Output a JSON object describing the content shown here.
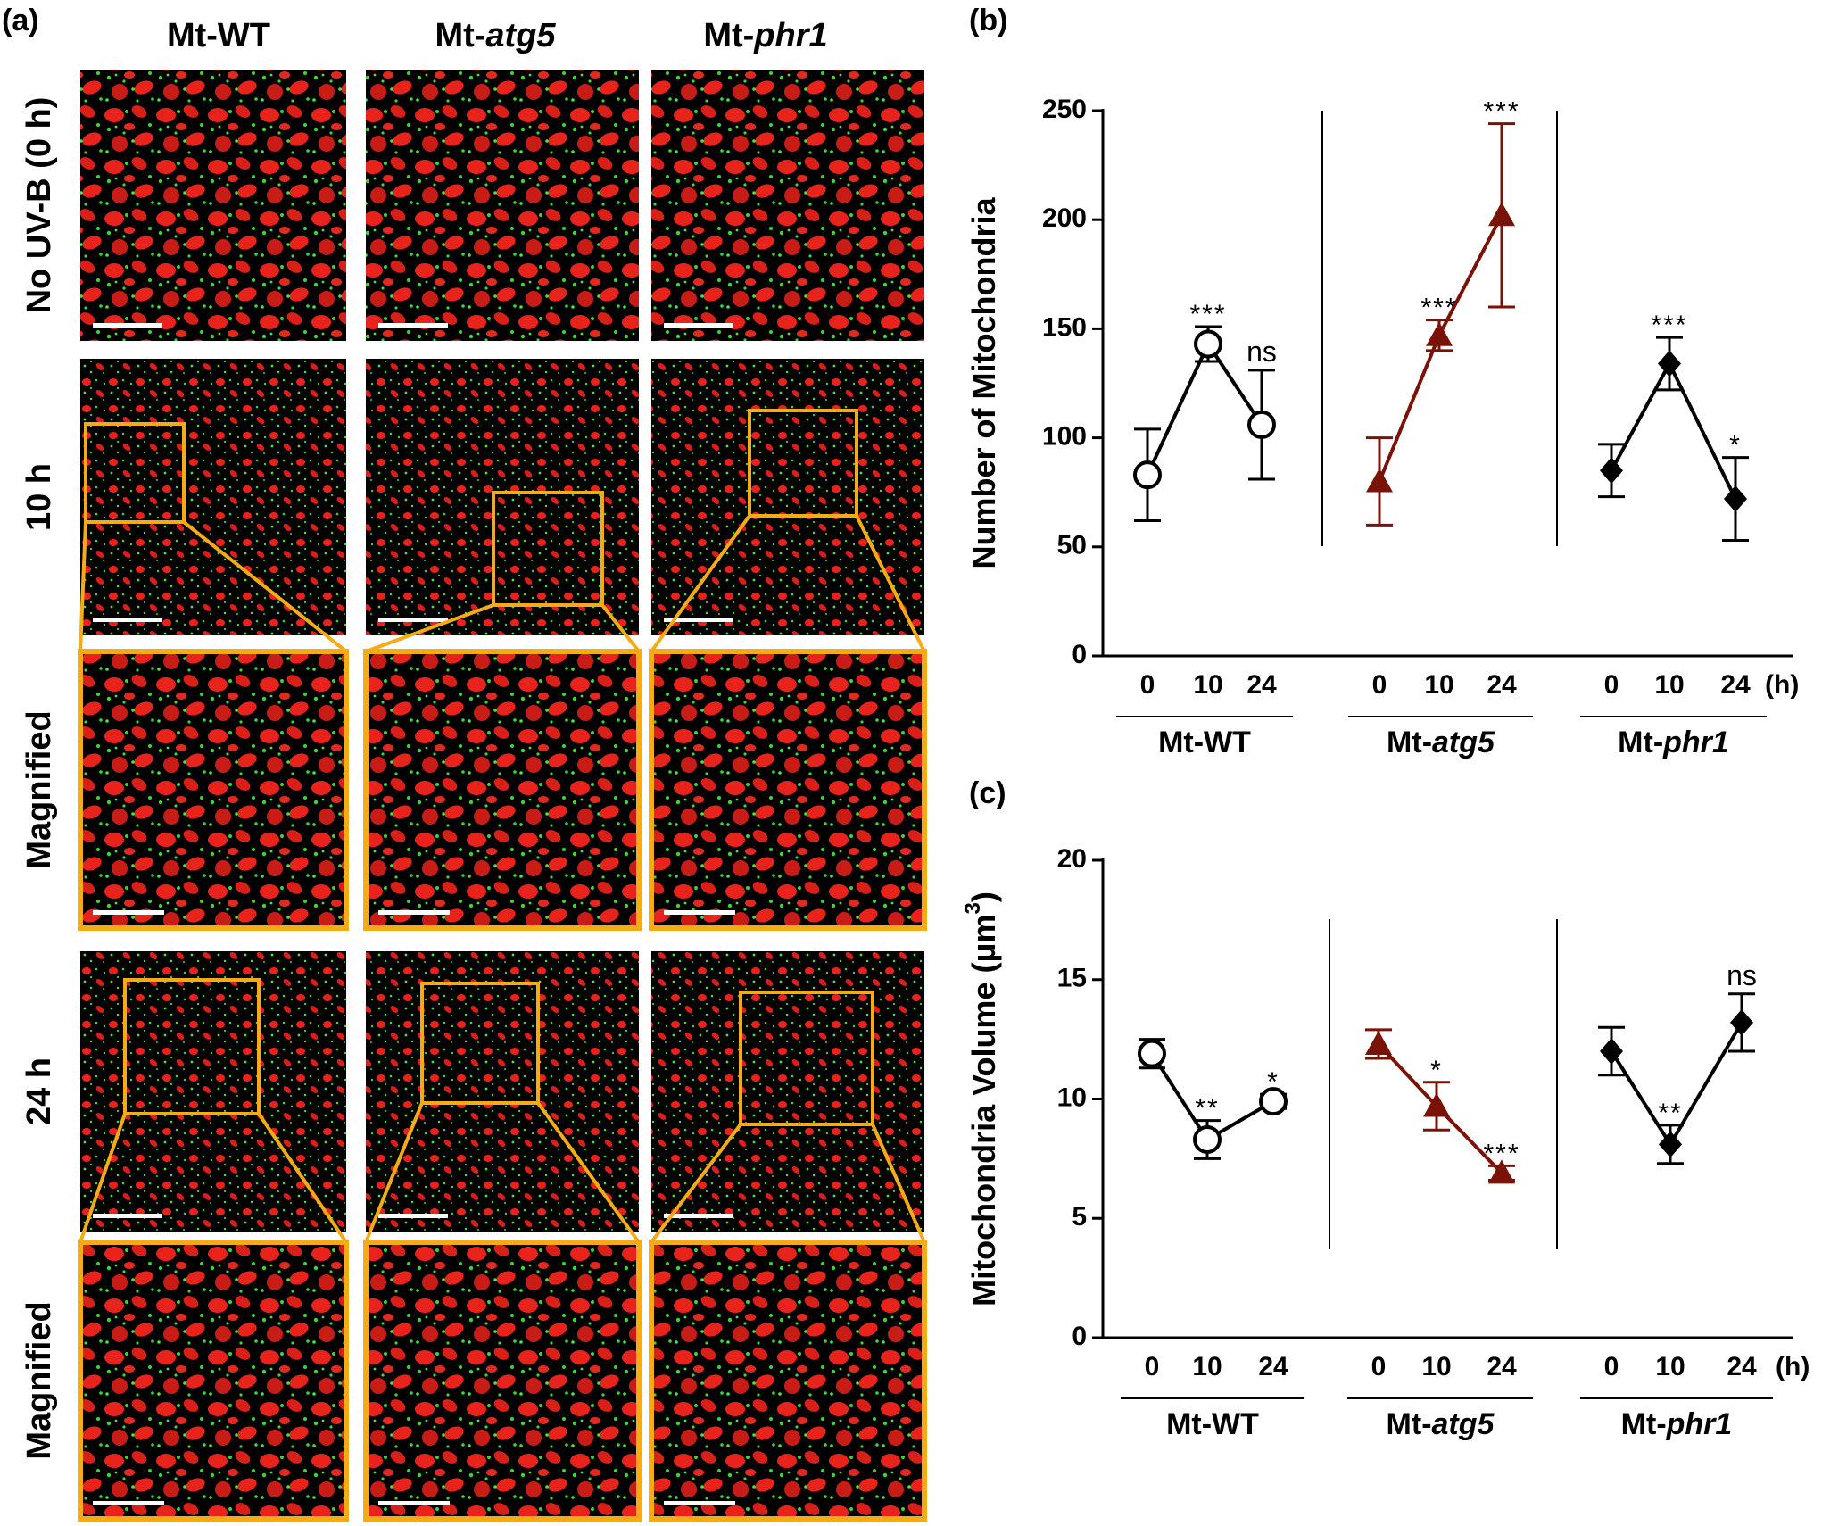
{
  "panel_a": {
    "label": "(a)",
    "columns": [
      {
        "parts": [
          "Mt-WT"
        ]
      },
      {
        "parts": [
          "Mt-",
          "atg5"
        ]
      },
      {
        "parts": [
          "Mt-",
          "phr1"
        ]
      }
    ],
    "rows": [
      {
        "label": "No UV-B (0 h)",
        "kind": "micrograph"
      },
      {
        "label": "10 h",
        "kind": "micrograph"
      },
      {
        "label": "Magnified",
        "kind": "magnified"
      },
      {
        "label": "24 h",
        "kind": "micrograph"
      },
      {
        "label": "Magnified",
        "kind": "magnified"
      }
    ],
    "colors": {
      "chloroplast": "#e8231c",
      "mitochondria": "#3fd62e",
      "background": "#000000",
      "frame": "#f5ab16",
      "scale_bar": "#ffffff"
    },
    "image_description": "Confocal micrographs: red chloroplasts and green mitochondria on black; yellow boxes mark magnified regions; white scale bars."
  },
  "chart_data": [
    {
      "panel": "(b)",
      "type": "line",
      "ylabel": "Number of Mitochondria",
      "ylim": [
        0,
        250
      ],
      "yticks": [
        0,
        50,
        100,
        150,
        200,
        250
      ],
      "x": [
        "0",
        "10",
        "24"
      ],
      "x_unit": "(h)",
      "series": [
        {
          "name": "Mt-WT",
          "label_parts": [
            "Mt-WT"
          ],
          "italic": "",
          "marker": "circle-open",
          "color": "#000000",
          "values": [
            83,
            143,
            106
          ],
          "errors": [
            21,
            8,
            25
          ],
          "significance": [
            "",
            "***",
            "ns"
          ]
        },
        {
          "name": "Mt-atg5",
          "label_parts": [
            "Mt-",
            "atg5"
          ],
          "marker": "triangle",
          "color": "#7b1207",
          "values": [
            80,
            147,
            202
          ],
          "errors": [
            20,
            7,
            42
          ],
          "significance": [
            "",
            "***",
            "***"
          ]
        },
        {
          "name": "Mt-phr1",
          "label_parts": [
            "Mt-",
            "phr1"
          ],
          "marker": "diamond",
          "color": "#000000",
          "values": [
            85,
            134,
            72
          ],
          "errors": [
            12,
            12,
            19
          ],
          "significance": [
            "",
            "***",
            "*"
          ]
        }
      ]
    },
    {
      "panel": "(c)",
      "type": "line",
      "ylabel": "Mitochondria Volume (μm",
      "ylabel_sup": "3",
      "ylabel_end": ")",
      "ylim": [
        0,
        20
      ],
      "yticks": [
        0,
        5,
        10,
        15,
        20
      ],
      "x": [
        "0",
        "10",
        "24"
      ],
      "x_unit": "(h)",
      "series": [
        {
          "name": "Mt-WT",
          "label_parts": [
            "Mt-WT"
          ],
          "marker": "circle-open",
          "color": "#000000",
          "values": [
            11.9,
            8.3,
            9.9
          ],
          "errors": [
            0.6,
            0.8,
            0.3
          ],
          "significance": [
            "",
            "**",
            "*"
          ]
        },
        {
          "name": "Mt-atg5",
          "label_parts": [
            "Mt-",
            "atg5"
          ],
          "marker": "triangle",
          "color": "#7b1207",
          "values": [
            12.3,
            9.7,
            6.9
          ],
          "errors": [
            0.6,
            1.0,
            0.3
          ],
          "significance": [
            "",
            "*",
            "***"
          ]
        },
        {
          "name": "Mt-phr1",
          "label_parts": [
            "Mt-",
            "phr1"
          ],
          "marker": "diamond",
          "color": "#000000",
          "values": [
            12.0,
            8.1,
            13.2
          ],
          "errors": [
            1.0,
            0.8,
            1.2
          ],
          "significance": [
            "",
            "**",
            "ns"
          ]
        }
      ]
    }
  ]
}
